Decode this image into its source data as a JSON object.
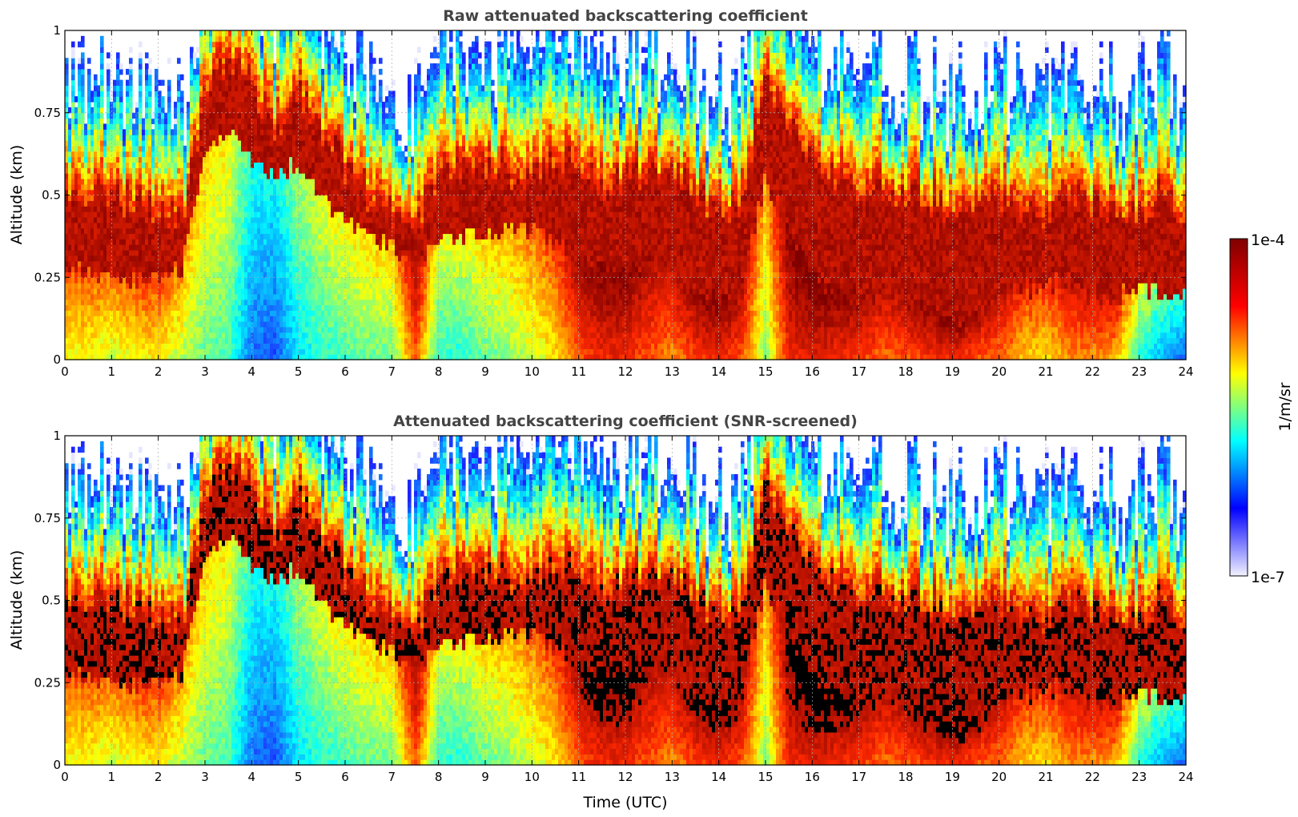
{
  "chart_data": [
    {
      "type": "heatmap",
      "title": "Raw attenuated backscattering coefficient",
      "xlabel": "",
      "ylabel": "Altitude (km)",
      "xlim": [
        0,
        24
      ],
      "ylim": [
        0,
        1
      ],
      "xticks": [
        "0",
        "1",
        "2",
        "3",
        "4",
        "5",
        "6",
        "7",
        "8",
        "9",
        "10",
        "11",
        "12",
        "13",
        "14",
        "15",
        "16",
        "17",
        "18",
        "19",
        "20",
        "21",
        "22",
        "23",
        "24"
      ],
      "yticks": [
        "0",
        "0.25",
        "0.5",
        "0.75",
        "1"
      ],
      "grid": true,
      "screened": false,
      "profile": {
        "time": [
          0,
          0.5,
          1,
          1.5,
          2,
          2.5,
          3,
          3.5,
          4,
          4.5,
          5,
          5.5,
          6,
          6.5,
          7,
          7.5,
          8,
          8.5,
          9,
          9.5,
          10,
          10.5,
          11,
          11.5,
          12,
          12.5,
          13,
          13.5,
          14,
          14.5,
          15,
          15.5,
          16,
          16.5,
          17,
          17.5,
          18,
          18.5,
          19,
          19.5,
          20,
          20.5,
          21,
          21.5,
          22,
          22.5,
          23,
          23.5,
          24
        ],
        "layer_top_km": [
          0.5,
          0.52,
          0.5,
          0.48,
          0.45,
          0.4,
          0.8,
          0.9,
          0.85,
          0.68,
          0.8,
          0.7,
          0.6,
          0.5,
          0.45,
          0.4,
          0.55,
          0.58,
          0.6,
          0.57,
          0.55,
          0.6,
          0.58,
          0.52,
          0.55,
          0.58,
          0.55,
          0.5,
          0.45,
          0.5,
          0.85,
          0.7,
          0.6,
          0.55,
          0.5,
          0.5,
          0.48,
          0.5,
          0.45,
          0.48,
          0.5,
          0.45,
          0.45,
          0.5,
          0.48,
          0.45,
          0.45,
          0.5,
          0.45
        ],
        "layer_bottom_km": [
          0.28,
          0.27,
          0.25,
          0.25,
          0.25,
          0.28,
          0.6,
          0.7,
          0.6,
          0.55,
          0.6,
          0.5,
          0.42,
          0.38,
          0.35,
          0.28,
          0.35,
          0.38,
          0.38,
          0.4,
          0.4,
          0.35,
          0.3,
          0.28,
          0.28,
          0.3,
          0.28,
          0.2,
          0.18,
          0.25,
          0.55,
          0.4,
          0.25,
          0.22,
          0.2,
          0.22,
          0.2,
          0.15,
          0.12,
          0.15,
          0.2,
          0.22,
          0.22,
          0.25,
          0.2,
          0.2,
          0.22,
          0.2,
          0.22
        ],
        "ground_level_logbeta": [
          -5.4,
          -5.4,
          -5.5,
          -5.4,
          -5.3,
          -5.6,
          -5.8,
          -5.9,
          -6.6,
          -6.7,
          -6.2,
          -6.0,
          -5.9,
          -5.8,
          -5.8,
          -4.8,
          -6.0,
          -6.0,
          -5.8,
          -5.7,
          -5.5,
          -5.3,
          -4.8,
          -4.6,
          -4.6,
          -4.8,
          -5.0,
          -4.7,
          -4.6,
          -4.8,
          -5.7,
          -4.6,
          -4.5,
          -4.6,
          -4.7,
          -4.9,
          -4.8,
          -4.7,
          -4.6,
          -4.8,
          -4.9,
          -5.2,
          -5.3,
          -5.0,
          -5.0,
          -5.1,
          -6.0,
          -6.4,
          -6.6
        ]
      }
    },
    {
      "type": "heatmap",
      "title": "Attenuated backscattering coefficient (SNR-screened)",
      "xlabel": "Time (UTC)",
      "ylabel": "Altitude (km)",
      "xlim": [
        0,
        24
      ],
      "ylim": [
        0,
        1
      ],
      "xticks": [
        "0",
        "1",
        "2",
        "3",
        "4",
        "5",
        "6",
        "7",
        "8",
        "9",
        "10",
        "11",
        "12",
        "13",
        "14",
        "15",
        "16",
        "17",
        "18",
        "19",
        "20",
        "21",
        "22",
        "23",
        "24"
      ],
      "yticks": [
        "0",
        "0.25",
        "0.5",
        "0.75",
        "1"
      ],
      "grid": true,
      "screened": true
    }
  ],
  "colorbar": {
    "label": "1/m/sr",
    "max_label": "1e-4",
    "min_label": "1e-7",
    "colormap": [
      "#f2f2ff",
      "#0000ff",
      "#00ffff",
      "#ffff00",
      "#ff0000",
      "#7f0000"
    ]
  }
}
